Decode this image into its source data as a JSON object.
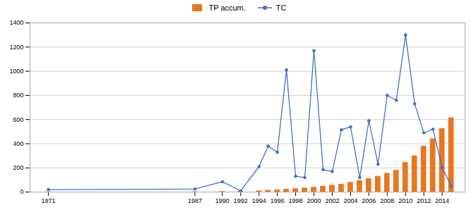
{
  "chart_data": {
    "type": "bar",
    "x": [
      1971,
      1987,
      1990,
      1992,
      1994,
      1995,
      1996,
      1997,
      1998,
      1999,
      2000,
      2001,
      2002,
      2003,
      2004,
      2005,
      2006,
      2007,
      2008,
      2009,
      2010,
      2011,
      2012,
      2013,
      2014,
      2015
    ],
    "series": [
      {
        "name": "TP accum.",
        "type": "bar",
        "color": "#E87722",
        "values": [
          2,
          3,
          5,
          7,
          10,
          14,
          18,
          23,
          28,
          33,
          40,
          48,
          56,
          65,
          80,
          95,
          110,
          130,
          155,
          180,
          245,
          300,
          380,
          440,
          525,
          615
        ]
      },
      {
        "name": "TC",
        "type": "line",
        "color": "#4472C4",
        "marker": "circle",
        "values": [
          20,
          25,
          85,
          10,
          210,
          380,
          330,
          1010,
          130,
          120,
          1170,
          185,
          170,
          515,
          540,
          120,
          590,
          230,
          800,
          760,
          1300,
          730,
          490,
          520,
          200,
          50
        ]
      }
    ],
    "xlim": [
      1969,
      2016.5
    ],
    "xticks": [
      1971,
      1987,
      1990,
      1992,
      1994,
      1996,
      1998,
      2000,
      2002,
      2004,
      2006,
      2008,
      2010,
      2012,
      2014
    ],
    "ylim": [
      0,
      1400
    ],
    "yticks": [
      0,
      200,
      400,
      600,
      800,
      1000,
      1200,
      1400
    ],
    "grid": true,
    "legend": "top"
  }
}
